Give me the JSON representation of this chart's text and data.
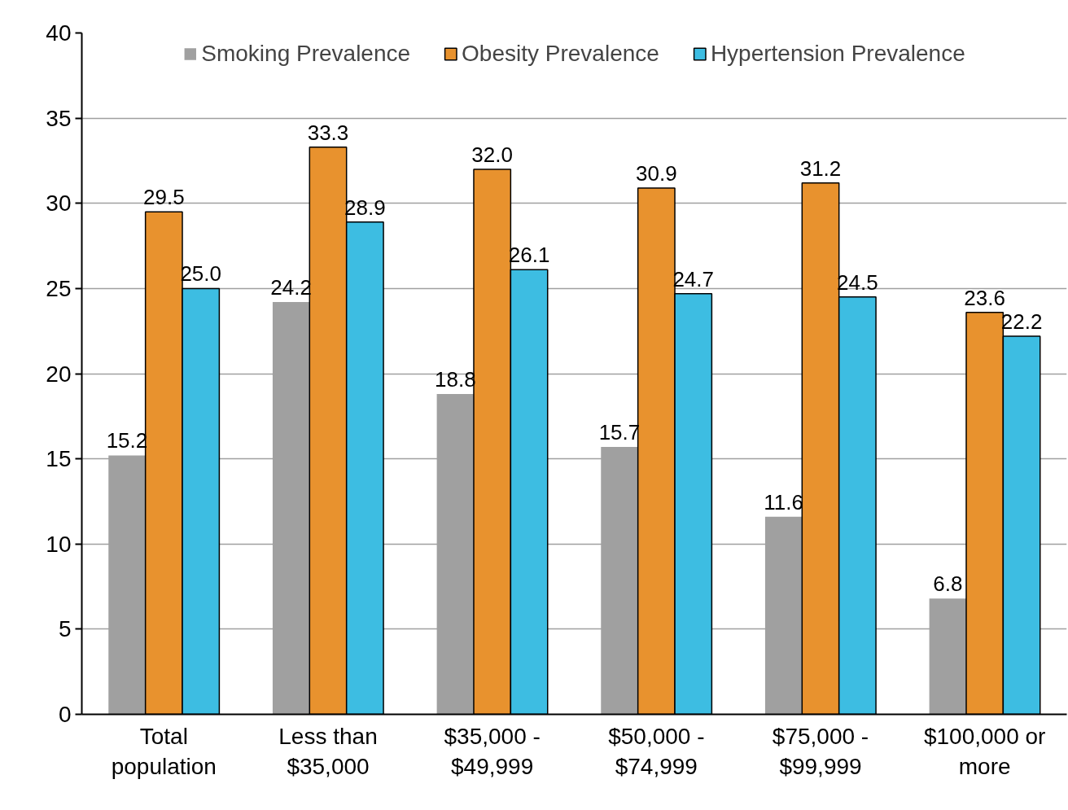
{
  "chart_data": {
    "type": "bar",
    "categories": [
      "Total population",
      "Less than $35,000",
      "$35,000 - $49,999",
      "$50,000 - $74,999",
      "$75,000 - $99,999",
      "$100,000 or more"
    ],
    "series": [
      {
        "name": "Smoking Prevalence",
        "color": "#a0a0a0",
        "values": [
          15.2,
          24.2,
          18.8,
          15.7,
          11.6,
          6.8
        ],
        "value_labels": [
          "15.2",
          "24.2",
          "18.8",
          "15.7",
          "11.6",
          "6.8"
        ]
      },
      {
        "name": "Obesity Prevalence",
        "color": "#e8922e",
        "values": [
          29.5,
          33.3,
          32.0,
          30.9,
          31.2,
          23.6
        ],
        "value_labels": [
          "29.5",
          "33.3",
          "32.0",
          "30.9",
          "31.2",
          "23.6"
        ]
      },
      {
        "name": "Hypertension Prevalence",
        "color": "#3dbde2",
        "values": [
          25.0,
          28.9,
          26.1,
          24.7,
          24.5,
          22.2
        ],
        "value_labels": [
          "25.0",
          "28.9",
          "26.1",
          "24.7",
          "24.5",
          "22.2"
        ]
      }
    ],
    "ylim": [
      0,
      40
    ],
    "yticks": [
      0,
      5,
      10,
      15,
      20,
      25,
      30,
      35,
      40
    ],
    "grid": "y",
    "legend": "top"
  }
}
